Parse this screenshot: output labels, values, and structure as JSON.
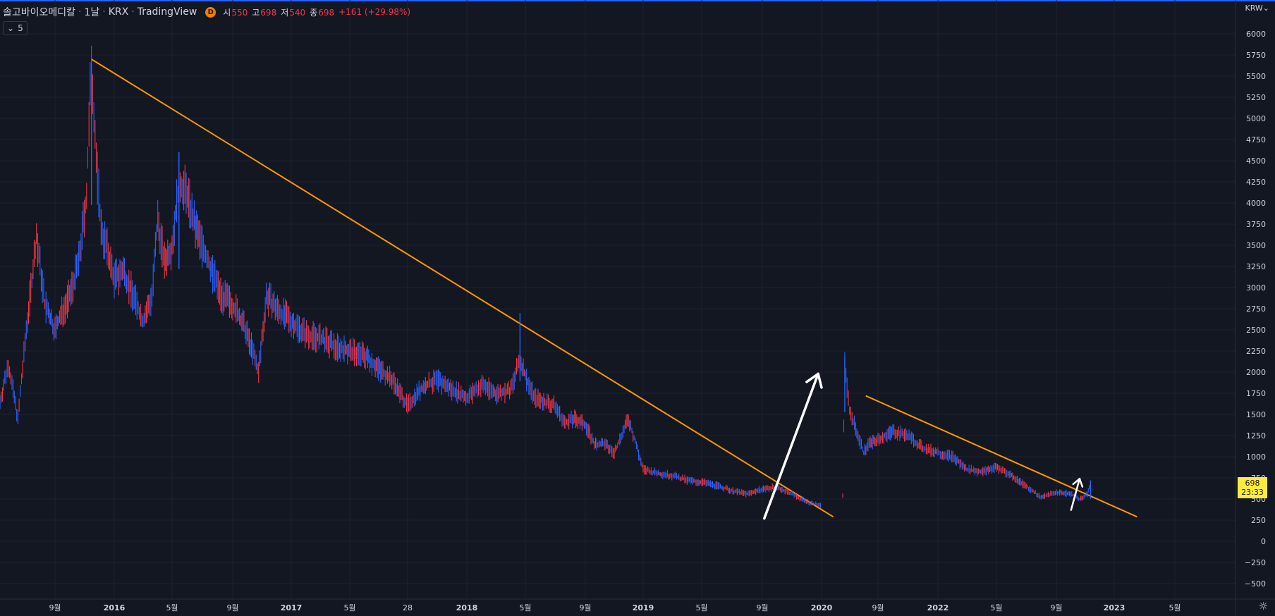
{
  "header": {
    "symbol": "솔고바이오메디칼",
    "interval": "1날",
    "exchange": "KRX",
    "platform": "TradingView",
    "badge": "D",
    "open_label": "시",
    "open": "550",
    "high_label": "고",
    "high": "698",
    "low_label": "저",
    "low": "540",
    "close_label": "종",
    "close": "698",
    "change": "+161 (+29.98%)"
  },
  "indicator_toggle": {
    "icon": "chevron-down-icon",
    "count": "5"
  },
  "currency": "KRW",
  "price_tag": {
    "price": "698",
    "countdown": "23:33"
  },
  "colors": {
    "up": "#f23645",
    "down": "#2962ff",
    "trendline": "#ff9800",
    "arrow": "#ffffff",
    "tag": "#ffeb3b"
  },
  "chart_data": {
    "type": "line",
    "title": "",
    "ylim": [
      -600,
      6100
    ],
    "yticks": [
      "6000",
      "5750",
      "5500",
      "5250",
      "5000",
      "4750",
      "4500",
      "4250",
      "4000",
      "3750",
      "3500",
      "3250",
      "3000",
      "2750",
      "2500",
      "2250",
      "2000",
      "1750",
      "1500",
      "1250",
      "1000",
      "750",
      "500",
      "250",
      "0",
      "−250",
      "−500"
    ],
    "xticks": [
      {
        "label": "9월",
        "x": "2015-09"
      },
      {
        "label": "2016",
        "x": "2016-01",
        "bold": true
      },
      {
        "label": "5월",
        "x": "2016-05"
      },
      {
        "label": "9월",
        "x": "2016-09"
      },
      {
        "label": "2017",
        "x": "2017-01",
        "bold": true
      },
      {
        "label": "5월",
        "x": "2017-05"
      },
      {
        "label": "28",
        "x": "2017-09"
      },
      {
        "label": "2018",
        "x": "2018-01",
        "bold": true
      },
      {
        "label": "5월",
        "x": "2018-05"
      },
      {
        "label": "9월",
        "x": "2018-09"
      },
      {
        "label": "2019",
        "x": "2019-01",
        "bold": true
      },
      {
        "label": "5월",
        "x": "2019-05"
      },
      {
        "label": "9월",
        "x": "2019-09"
      },
      {
        "label": "2020",
        "x": "2020-01",
        "bold": true
      },
      {
        "label": "9월",
        "x": "2020-09"
      },
      {
        "label": "2022",
        "x": "2022-01",
        "bold": true
      },
      {
        "label": "5월",
        "x": "2022-05"
      },
      {
        "label": "9월",
        "x": "2022-09"
      },
      {
        "label": "2023",
        "x": "2023-01",
        "bold": true
      },
      {
        "label": "5월",
        "x": "2023-05"
      }
    ],
    "series": [
      {
        "values": [
          [
            "2015-06-01",
            1650
          ],
          [
            "2015-06-15",
            2100
          ],
          [
            "2015-07-01",
            1450
          ],
          [
            "2015-07-15",
            2500
          ],
          [
            "2015-08-01",
            3600
          ],
          [
            "2015-08-15",
            2800
          ],
          [
            "2015-09-01",
            2500
          ],
          [
            "2015-09-15",
            2700
          ],
          [
            "2015-10-01",
            2900
          ],
          [
            "2015-10-20",
            3300
          ],
          [
            "2015-11-05",
            4100
          ],
          [
            "2015-11-15",
            5680
          ],
          [
            "2015-11-25",
            4500
          ],
          [
            "2015-12-05",
            3700
          ],
          [
            "2015-12-20",
            3400
          ],
          [
            "2016-01-01",
            3100
          ],
          [
            "2016-01-20",
            3200
          ],
          [
            "2016-02-10",
            2900
          ],
          [
            "2016-03-01",
            2600
          ],
          [
            "2016-03-20",
            2900
          ],
          [
            "2016-04-01",
            3800
          ],
          [
            "2016-04-15",
            3300
          ],
          [
            "2016-05-01",
            3500
          ],
          [
            "2016-05-15",
            4250
          ],
          [
            "2016-06-01",
            4100
          ],
          [
            "2016-06-15",
            3750
          ],
          [
            "2016-07-01",
            3500
          ],
          [
            "2016-07-20",
            3200
          ],
          [
            "2016-08-10",
            2900
          ],
          [
            "2016-09-01",
            2800
          ],
          [
            "2016-09-20",
            2600
          ],
          [
            "2016-10-10",
            2300
          ],
          [
            "2016-10-25",
            2000
          ],
          [
            "2016-11-10",
            2900
          ],
          [
            "2016-12-01",
            2750
          ],
          [
            "2017-01-01",
            2600
          ],
          [
            "2017-02-01",
            2450
          ],
          [
            "2017-03-01",
            2400
          ],
          [
            "2017-04-01",
            2300
          ],
          [
            "2017-05-01",
            2250
          ],
          [
            "2017-06-01",
            2200
          ],
          [
            "2017-07-01",
            2050
          ],
          [
            "2017-08-01",
            1900
          ],
          [
            "2017-09-01",
            1600
          ],
          [
            "2017-09-20",
            1750
          ],
          [
            "2017-10-10",
            1850
          ],
          [
            "2017-11-01",
            1900
          ],
          [
            "2017-12-01",
            1800
          ],
          [
            "2018-01-01",
            1700
          ],
          [
            "2018-02-01",
            1850
          ],
          [
            "2018-03-01",
            1750
          ],
          [
            "2018-04-01",
            1780
          ],
          [
            "2018-04-20",
            2150
          ],
          [
            "2018-05-01",
            1950
          ],
          [
            "2018-05-20",
            1700
          ],
          [
            "2018-06-10",
            1650
          ],
          [
            "2018-07-01",
            1600
          ],
          [
            "2018-07-20",
            1400
          ],
          [
            "2018-08-10",
            1450
          ],
          [
            "2018-09-01",
            1380
          ],
          [
            "2018-09-20",
            1150
          ],
          [
            "2018-10-10",
            1150
          ],
          [
            "2018-11-01",
            1050
          ],
          [
            "2018-12-01",
            1450
          ],
          [
            "2019-01-01",
            850
          ],
          [
            "2019-02-01",
            800
          ],
          [
            "2019-03-01",
            780
          ],
          [
            "2019-04-01",
            720
          ],
          [
            "2019-05-01",
            700
          ],
          [
            "2019-06-01",
            660
          ],
          [
            "2019-07-01",
            600
          ],
          [
            "2019-08-01",
            560
          ],
          [
            "2019-09-01",
            620
          ],
          [
            "2019-10-01",
            640
          ],
          [
            "2019-11-01",
            560
          ],
          [
            "2019-12-01",
            470
          ],
          [
            "2020-01-01",
            420
          ],
          [
            "2020-03-15",
            null
          ],
          [
            "2020-04-01",
            550
          ],
          [
            "2020-04-10",
            2150
          ],
          [
            "2020-04-20",
            1800
          ],
          [
            "2020-05-01",
            1550
          ],
          [
            "2020-06-01",
            1300
          ],
          [
            "2020-07-01",
            1050
          ],
          [
            "2020-07-20",
            1150
          ],
          [
            "2020-09-01",
            1200
          ],
          [
            "2020-10-01",
            1300
          ],
          [
            "2020-11-01",
            1250
          ],
          [
            "2020-12-01",
            1100
          ],
          [
            "2021-01-01",
            1050
          ],
          [
            "2021-02-01",
            1000
          ],
          [
            "2021-03-01",
            850
          ],
          [
            "2021-04-01",
            820
          ],
          [
            "2021-05-01",
            880
          ],
          [
            "2021-06-01",
            780
          ],
          [
            "2021-07-01",
            650
          ],
          [
            "2021-08-01",
            520
          ],
          [
            "2021-09-01",
            580
          ],
          [
            "2021-10-01",
            560
          ],
          [
            "2021-10-20",
            500
          ],
          [
            "2021-11-05",
            550
          ],
          [
            "2021-11-12",
            698
          ]
        ]
      }
    ],
    "trendlines": [
      {
        "from": [
          "2015-11-15",
          5700
        ],
        "to": [
          "2020-02-20",
          290
        ]
      },
      {
        "from": [
          "2020-07-10",
          1720
        ],
        "to": [
          "2022-02-15",
          290
        ]
      }
    ],
    "arrows": [
      {
        "from": [
          "2019-09-05",
          270
        ],
        "to": [
          "2019-12-25",
          1980
        ]
      },
      {
        "from": [
          "2021-10-02",
          370
        ],
        "to": [
          "2021-10-20",
          740
        ]
      }
    ]
  }
}
